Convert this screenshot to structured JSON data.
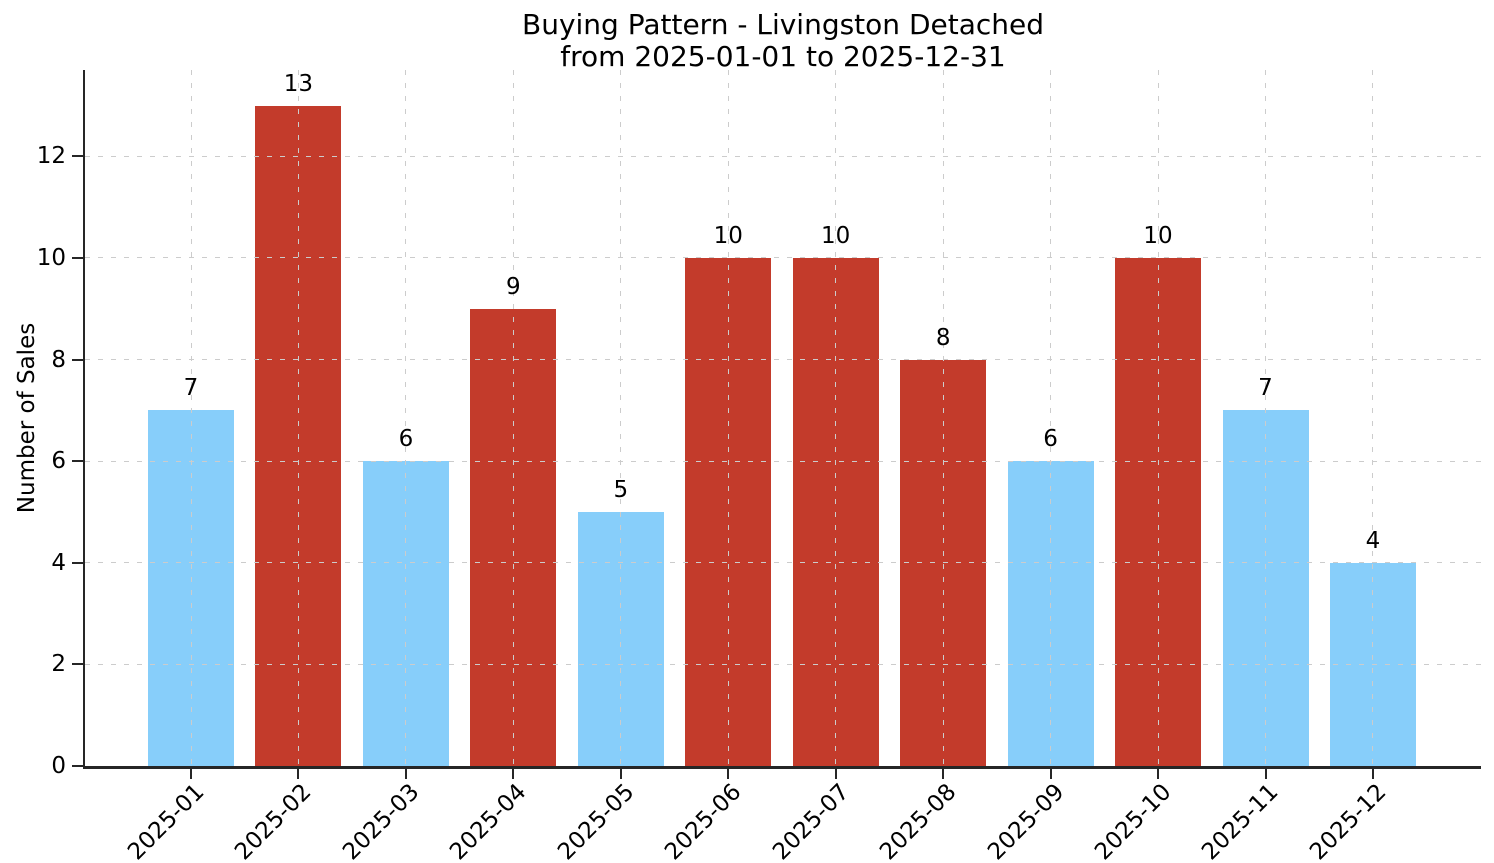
{
  "figure": {
    "title_line1": "Buying Pattern - Livingston Detached",
    "title_line2": "from 2025-01-01 to 2025-12-31"
  },
  "chart_data": {
    "type": "bar",
    "title": "Buying Pattern - Livingston Detached from 2025-01-01 to 2025-12-31",
    "xlabel": "",
    "ylabel": "Number of Sales",
    "categories": [
      "2025-01",
      "2025-02",
      "2025-03",
      "2025-04",
      "2025-05",
      "2025-06",
      "2025-07",
      "2025-08",
      "2025-09",
      "2025-10",
      "2025-11",
      "2025-12"
    ],
    "values": [
      7,
      13,
      6,
      9,
      5,
      10,
      10,
      8,
      6,
      10,
      7,
      4
    ],
    "bar_colors": [
      "#87CEFA",
      "#C33B2B",
      "#87CEFA",
      "#C33B2B",
      "#87CEFA",
      "#C33B2B",
      "#C33B2B",
      "#C33B2B",
      "#87CEFA",
      "#C33B2B",
      "#87CEFA",
      "#87CEFA"
    ],
    "value_labels": [
      "7",
      "13",
      "6",
      "9",
      "5",
      "10",
      "10",
      "8",
      "6",
      "10",
      "7",
      "4"
    ],
    "yticks": [
      0,
      2,
      4,
      6,
      8,
      10,
      12
    ],
    "ylim": [
      0,
      13.7
    ],
    "grid": "both, dashed, drawn above bars",
    "legend": "none"
  },
  "style": {
    "background": "#ffffff",
    "axis_color": "#262626",
    "grid_color": "#cccccc",
    "text_color": "#000000",
    "bar_blue": "#87CEFA",
    "bar_red": "#C33B2B"
  }
}
